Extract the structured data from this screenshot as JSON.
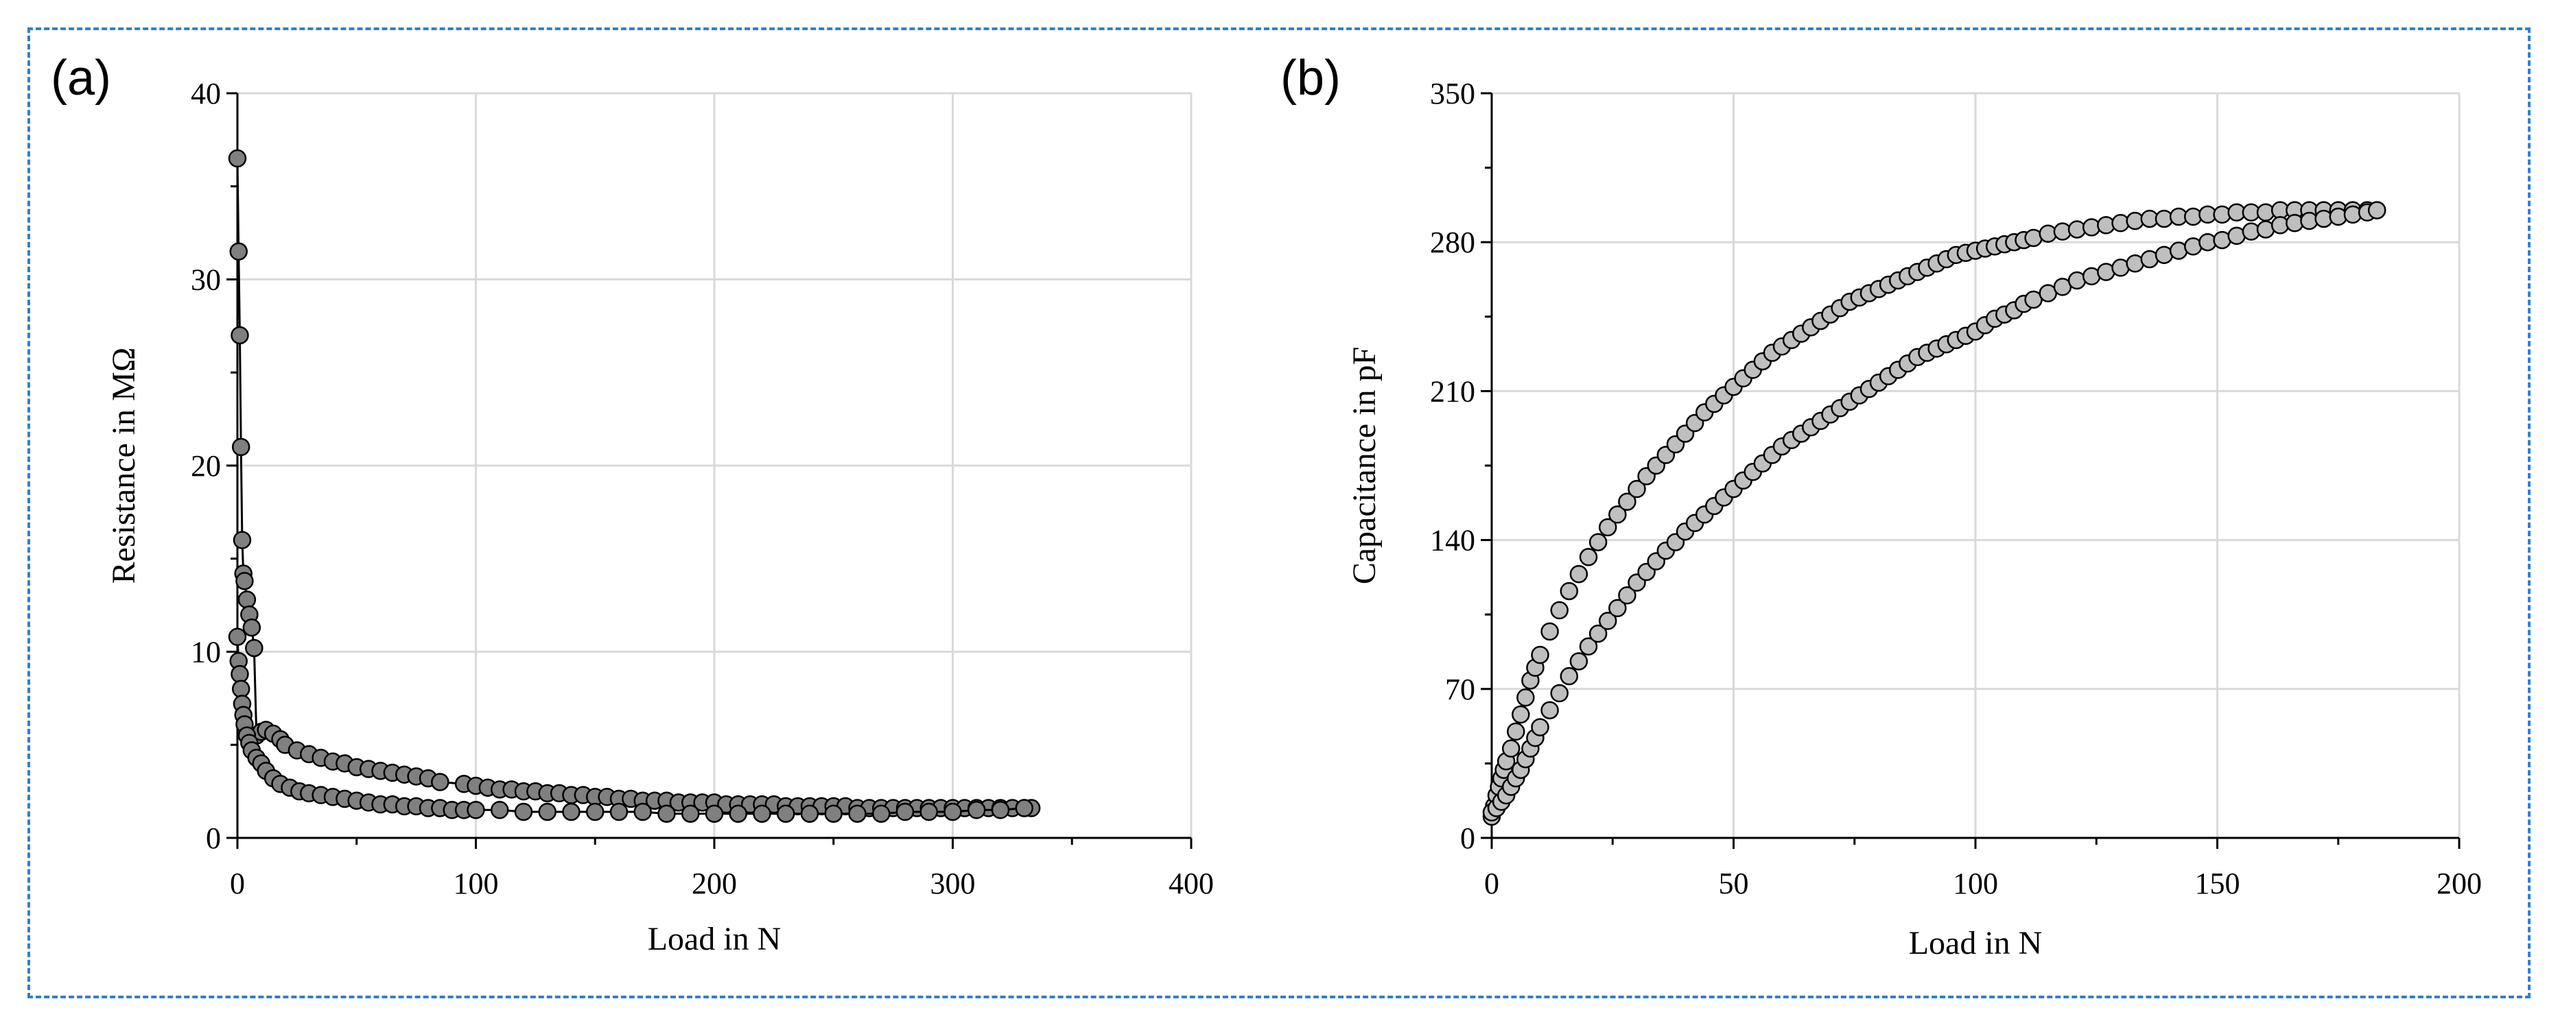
{
  "chart_data": [
    {
      "panel_label": "(a)",
      "type": "scatter",
      "xlabel": "Load in N",
      "ylabel": "Resistance in MΩ",
      "xlim": [
        0,
        400
      ],
      "ylim": [
        0,
        40
      ],
      "xticks": [
        0,
        100,
        200,
        300,
        400
      ],
      "yticks": [
        0,
        10,
        20,
        30,
        40
      ],
      "grid": true,
      "marker_color": "#808080",
      "line_color": "#000000",
      "series": [
        {
          "line": true,
          "x": [
            0,
            0.5,
            1,
            1.5,
            2,
            2.5,
            3,
            4,
            5,
            6,
            7,
            8,
            10,
            12,
            15,
            18,
            20,
            25,
            30,
            35,
            40,
            45,
            50,
            55,
            60,
            65,
            70,
            75,
            80,
            85,
            95,
            100,
            105,
            110,
            115,
            120,
            125,
            130,
            135,
            140,
            145,
            150,
            155,
            160,
            165,
            170,
            175,
            180,
            185,
            190,
            195,
            200,
            205,
            210,
            215,
            220,
            225,
            230,
            235,
            240,
            245,
            250,
            255,
            260,
            265,
            270,
            275,
            280,
            285,
            290,
            295,
            300,
            305,
            310,
            315,
            320,
            325,
            330,
            333
          ],
          "y": [
            36.5,
            31.5,
            27,
            21,
            16,
            14.2,
            13.8,
            12.8,
            12,
            11.3,
            10.2,
            5.5,
            5.7,
            5.8,
            5.6,
            5.3,
            5.0,
            4.7,
            4.5,
            4.3,
            4.1,
            4.0,
            3.8,
            3.7,
            3.6,
            3.5,
            3.4,
            3.3,
            3.2,
            3.0,
            2.9,
            2.8,
            2.7,
            2.6,
            2.6,
            2.5,
            2.5,
            2.4,
            2.4,
            2.3,
            2.3,
            2.2,
            2.2,
            2.1,
            2.1,
            2.0,
            2.0,
            2.0,
            1.9,
            1.9,
            1.9,
            1.9,
            1.8,
            1.8,
            1.8,
            1.8,
            1.8,
            1.7,
            1.7,
            1.7,
            1.7,
            1.7,
            1.7,
            1.6,
            1.6,
            1.6,
            1.6,
            1.6,
            1.6,
            1.6,
            1.6,
            1.6,
            1.6,
            1.6,
            1.6,
            1.6,
            1.6,
            1.6,
            1.6
          ]
        },
        {
          "line": true,
          "x": [
            0,
            0.5,
            1,
            1.5,
            2,
            2.5,
            3,
            4,
            5,
            6,
            8,
            10,
            12,
            15,
            18,
            22,
            26,
            30,
            35,
            40,
            45,
            50,
            55,
            60,
            65,
            70,
            75,
            80,
            85,
            90,
            95,
            100,
            110,
            120,
            130,
            140,
            150,
            160,
            170,
            180,
            190,
            200,
            210,
            220,
            230,
            240,
            250,
            260,
            270,
            280,
            290,
            300,
            310,
            320,
            330
          ],
          "y": [
            10.8,
            9.5,
            8.8,
            8.0,
            7.2,
            6.6,
            6.1,
            5.5,
            5.1,
            4.7,
            4.3,
            4.0,
            3.6,
            3.2,
            2.9,
            2.7,
            2.5,
            2.4,
            2.3,
            2.2,
            2.1,
            2.0,
            1.9,
            1.8,
            1.8,
            1.7,
            1.7,
            1.6,
            1.6,
            1.5,
            1.5,
            1.5,
            1.5,
            1.4,
            1.4,
            1.4,
            1.4,
            1.4,
            1.4,
            1.3,
            1.3,
            1.3,
            1.3,
            1.3,
            1.3,
            1.3,
            1.3,
            1.3,
            1.3,
            1.4,
            1.4,
            1.4,
            1.5,
            1.5,
            1.6
          ]
        }
      ]
    },
    {
      "panel_label": "(b)",
      "type": "scatter",
      "xlabel": "Load in N",
      "ylabel": "Capacitance in pF",
      "xlim": [
        0,
        200
      ],
      "ylim": [
        0,
        350
      ],
      "xticks": [
        0,
        50,
        100,
        150,
        200
      ],
      "yticks": [
        0,
        70,
        140,
        210,
        280,
        350
      ],
      "grid": true,
      "marker_color": "#bfbfbf",
      "series": [
        {
          "line": false,
          "x": [
            0,
            0.5,
            1,
            1.5,
            2,
            2.5,
            3,
            4,
            5,
            6,
            7,
            8,
            9,
            10,
            12,
            14,
            16,
            18,
            20,
            22,
            24,
            26,
            28,
            30,
            32,
            34,
            36,
            38,
            40,
            42,
            44,
            46,
            48,
            50,
            52,
            54,
            56,
            58,
            60,
            62,
            64,
            66,
            68,
            70,
            72,
            74,
            76,
            78,
            80,
            82,
            84,
            86,
            88,
            90,
            92,
            94,
            96,
            98,
            100,
            102,
            104,
            106,
            108,
            110,
            112,
            115,
            118,
            121,
            124,
            127,
            130,
            133,
            136,
            139,
            142,
            145,
            148,
            151,
            154,
            157,
            160,
            163,
            166,
            169,
            172,
            175,
            178,
            181,
            183
          ],
          "y": [
            10,
            15,
            20,
            24,
            28,
            32,
            36,
            42,
            50,
            58,
            66,
            74,
            80,
            86,
            97,
            107,
            116,
            124,
            132,
            139,
            146,
            152,
            158,
            164,
            170,
            175,
            180,
            185,
            190,
            195,
            200,
            204,
            208,
            212,
            216,
            220,
            224,
            228,
            231,
            234,
            237,
            240,
            243,
            246,
            249,
            252,
            254,
            256,
            258,
            260,
            262,
            264,
            266,
            268,
            270,
            272,
            274,
            275,
            276,
            277,
            278,
            279,
            280,
            281,
            282,
            284,
            285,
            286,
            287,
            288,
            289,
            290,
            291,
            291,
            292,
            292,
            293,
            293,
            294,
            294,
            294,
            295,
            295,
            295,
            295,
            295,
            295,
            295,
            295
          ]
        },
        {
          "line": false,
          "x": [
            0,
            1,
            2,
            3,
            4,
            5,
            6,
            7,
            8,
            9,
            10,
            12,
            14,
            16,
            18,
            20,
            22,
            24,
            26,
            28,
            30,
            32,
            34,
            36,
            38,
            40,
            42,
            44,
            46,
            48,
            50,
            52,
            54,
            56,
            58,
            60,
            62,
            64,
            66,
            68,
            70,
            72,
            74,
            76,
            78,
            80,
            82,
            84,
            86,
            88,
            90,
            92,
            94,
            96,
            98,
            100,
            102,
            104,
            106,
            108,
            110,
            112,
            115,
            118,
            121,
            124,
            127,
            130,
            133,
            136,
            139,
            142,
            145,
            148,
            151,
            154,
            157,
            160,
            163,
            166,
            169,
            172,
            175,
            178,
            181,
            183
          ],
          "y": [
            12,
            14,
            17,
            20,
            24,
            28,
            32,
            37,
            42,
            47,
            52,
            60,
            68,
            76,
            83,
            90,
            96,
            102,
            108,
            114,
            120,
            125,
            130,
            135,
            139,
            144,
            148,
            152,
            156,
            160,
            164,
            168,
            172,
            176,
            180,
            184,
            187,
            190,
            193,
            196,
            199,
            202,
            205,
            208,
            211,
            214,
            217,
            220,
            223,
            226,
            228,
            230,
            232,
            234,
            236,
            238,
            241,
            244,
            246,
            248,
            251,
            253,
            256,
            259,
            262,
            264,
            266,
            268,
            270,
            272,
            274,
            276,
            278,
            280,
            281,
            283,
            285,
            286,
            288,
            289,
            290,
            291,
            292,
            293,
            294,
            295
          ]
        }
      ]
    }
  ]
}
